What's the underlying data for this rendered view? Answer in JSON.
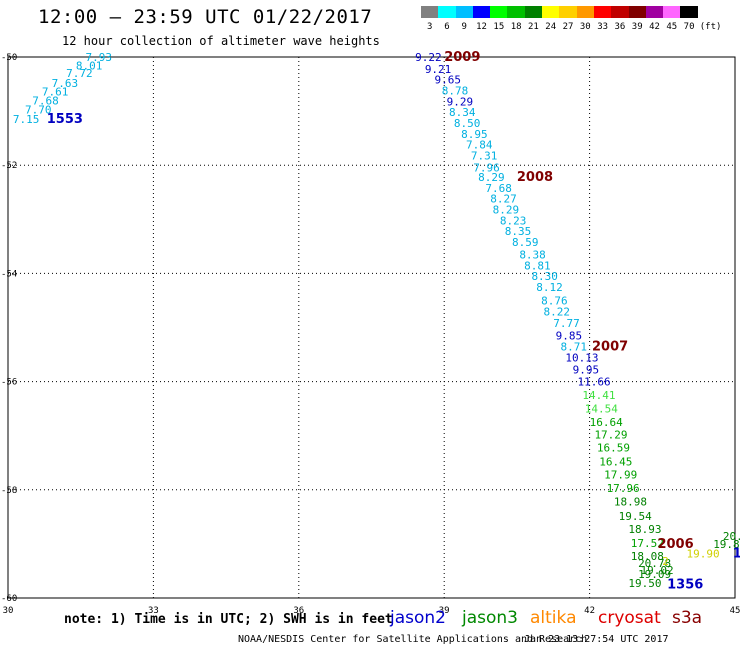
{
  "header": {
    "title": "12:00 – 23:59 UTC 01/22/2017",
    "subtitle": "12 hour collection of altimeter wave heights"
  },
  "colorbar": {
    "unit": "(ft)",
    "bins": [
      {
        "label": "3",
        "color": "#808080"
      },
      {
        "label": "6",
        "color": "#00ffff"
      },
      {
        "label": "9",
        "color": "#00bfff"
      },
      {
        "label": "12",
        "color": "#0000ff"
      },
      {
        "label": "15",
        "color": "#00ff00"
      },
      {
        "label": "18",
        "color": "#00c000"
      },
      {
        "label": "21",
        "color": "#008000"
      },
      {
        "label": "24",
        "color": "#ffff00"
      },
      {
        "label": "27",
        "color": "#ffd000"
      },
      {
        "label": "30",
        "color": "#ff9900"
      },
      {
        "label": "33",
        "color": "#ff0000"
      },
      {
        "label": "36",
        "color": "#c00000"
      },
      {
        "label": "39",
        "color": "#800000"
      },
      {
        "label": "42",
        "color": "#a000a0"
      },
      {
        "label": "45",
        "color": "#ff66ff"
      },
      {
        "label": "70",
        "color": "#000000"
      }
    ]
  },
  "footer": {
    "note": "note: 1) Time is in UTC; 2) SWH is in feet",
    "satellites": [
      {
        "name": "jason2",
        "color": "#0000cc"
      },
      {
        "name": "jason3",
        "color": "#008800"
      },
      {
        "name": "altika",
        "color": "#ff8800"
      },
      {
        "name": "cryosat",
        "color": "#dd0000"
      },
      {
        "name": "s3a",
        "color": "#880000"
      }
    ],
    "credit": "NOAA/NESDIS Center for Satellite Applications and Research",
    "timestamp": "Jan 23 13:27:54 UTC 2017"
  },
  "chart_data": {
    "type": "scatter",
    "xlim": [
      30,
      45
    ],
    "ylim": [
      -60,
      -50
    ],
    "x_ticks": [
      30,
      33,
      36,
      39,
      42,
      45
    ],
    "y_ticks": [
      -50,
      -52,
      -54,
      -56,
      -58,
      -60
    ],
    "grid": true,
    "points": [
      {
        "x": 31.6,
        "y": -50.0,
        "value": "7.93",
        "color": "#00b0e0"
      },
      {
        "x": 31.4,
        "y": -50.16,
        "value": "8.01",
        "color": "#00b0e0"
      },
      {
        "x": 31.2,
        "y": -50.3,
        "value": "7.72",
        "color": "#00b0e0"
      },
      {
        "x": 30.9,
        "y": -50.48,
        "value": "7.63",
        "color": "#00b0e0"
      },
      {
        "x": 30.7,
        "y": -50.64,
        "value": "7.61",
        "color": "#00b0e0"
      },
      {
        "x": 30.5,
        "y": -50.8,
        "value": "7.68",
        "color": "#00b0e0"
      },
      {
        "x": 30.35,
        "y": -50.97,
        "value": "7.70",
        "color": "#00b0e0"
      },
      {
        "x": 30.1,
        "y": -51.15,
        "value": "7.15",
        "color": "#00b0e0"
      },
      {
        "x": 38.4,
        "y": -50.0,
        "value": "9.22",
        "color": "#0000c0"
      },
      {
        "x": 38.6,
        "y": -50.22,
        "value": "9.21",
        "color": "#0000c0"
      },
      {
        "x": 38.8,
        "y": -50.42,
        "value": "9.65",
        "color": "#0000c0"
      },
      {
        "x": 38.95,
        "y": -50.62,
        "value": "8.78",
        "color": "#00b0e0"
      },
      {
        "x": 39.05,
        "y": -50.82,
        "value": "9.29",
        "color": "#0000c0"
      },
      {
        "x": 39.1,
        "y": -51.02,
        "value": "8.34",
        "color": "#00b0e0"
      },
      {
        "x": 39.2,
        "y": -51.22,
        "value": "8.50",
        "color": "#00b0e0"
      },
      {
        "x": 39.35,
        "y": -51.42,
        "value": "8.95",
        "color": "#00b0e0"
      },
      {
        "x": 39.45,
        "y": -51.62,
        "value": "7.84",
        "color": "#00b0e0"
      },
      {
        "x": 39.55,
        "y": -51.82,
        "value": "7.31",
        "color": "#00b0e0"
      },
      {
        "x": 39.6,
        "y": -52.04,
        "value": "7.96",
        "color": "#00b0e0"
      },
      {
        "x": 39.7,
        "y": -52.22,
        "value": "8.29",
        "color": "#00b0e0"
      },
      {
        "x": 39.85,
        "y": -52.42,
        "value": "7.68",
        "color": "#00b0e0"
      },
      {
        "x": 39.95,
        "y": -52.62,
        "value": "8.27",
        "color": "#00b0e0"
      },
      {
        "x": 40.0,
        "y": -52.82,
        "value": "8.29",
        "color": "#00b0e0"
      },
      {
        "x": 40.15,
        "y": -53.02,
        "value": "8.23",
        "color": "#00b0e0"
      },
      {
        "x": 40.25,
        "y": -53.22,
        "value": "8.35",
        "color": "#00b0e0"
      },
      {
        "x": 40.4,
        "y": -53.42,
        "value": "8.59",
        "color": "#00b0e0"
      },
      {
        "x": 40.55,
        "y": -53.65,
        "value": "8.38",
        "color": "#00b0e0"
      },
      {
        "x": 40.65,
        "y": -53.85,
        "value": "8.81",
        "color": "#00b0e0"
      },
      {
        "x": 40.8,
        "y": -54.05,
        "value": "8.30",
        "color": "#00b0e0"
      },
      {
        "x": 40.9,
        "y": -54.25,
        "value": "8.12",
        "color": "#00b0e0"
      },
      {
        "x": 41.0,
        "y": -54.5,
        "value": "8.76",
        "color": "#00b0e0"
      },
      {
        "x": 41.05,
        "y": -54.7,
        "value": "8.22",
        "color": "#00b0e0"
      },
      {
        "x": 41.25,
        "y": -54.92,
        "value": "7.77",
        "color": "#00b0e0"
      },
      {
        "x": 41.3,
        "y": -55.15,
        "value": "9.85",
        "color": "#0000c0"
      },
      {
        "x": 41.4,
        "y": -55.35,
        "value": "8.71",
        "color": "#00b0e0"
      },
      {
        "x": 41.5,
        "y": -55.55,
        "value": "10.13",
        "color": "#0000c0"
      },
      {
        "x": 41.65,
        "y": -55.78,
        "value": "9.95",
        "color": "#0000c0"
      },
      {
        "x": 41.75,
        "y": -56.0,
        "value": "11.66",
        "color": "#0000c0"
      },
      {
        "x": 41.85,
        "y": -56.25,
        "value": "14.41",
        "color": "#40e040"
      },
      {
        "x": 41.9,
        "y": -56.5,
        "value": "14.54",
        "color": "#40e040"
      },
      {
        "x": 42.0,
        "y": -56.75,
        "value": "16.64",
        "color": "#00a000"
      },
      {
        "x": 42.1,
        "y": -56.98,
        "value": "17.29",
        "color": "#00a000"
      },
      {
        "x": 42.15,
        "y": -57.22,
        "value": "16.59",
        "color": "#00a000"
      },
      {
        "x": 42.2,
        "y": -57.48,
        "value": "16.45",
        "color": "#00a000"
      },
      {
        "x": 42.3,
        "y": -57.72,
        "value": "17.99",
        "color": "#00a000"
      },
      {
        "x": 42.35,
        "y": -57.97,
        "value": "17.96",
        "color": "#00a000"
      },
      {
        "x": 42.5,
        "y": -58.22,
        "value": "18.98",
        "color": "#008000"
      },
      {
        "x": 42.6,
        "y": -58.48,
        "value": "19.54",
        "color": "#008000"
      },
      {
        "x": 42.8,
        "y": -58.72,
        "value": "18.93",
        "color": "#008000"
      },
      {
        "x": 42.85,
        "y": -58.98,
        "value": "17.52",
        "color": "#00a000"
      },
      {
        "x": 42.85,
        "y": -59.22,
        "value": "18.08",
        "color": "#008000"
      },
      {
        "x": 43.0,
        "y": -59.35,
        "value": "20.78",
        "color": "#008000"
      },
      {
        "x": 43.05,
        "y": -59.48,
        "value": "19.02",
        "color": "#008000"
      },
      {
        "x": 43.0,
        "y": -59.56,
        "value": "19.09",
        "color": "#008000"
      },
      {
        "x": 42.8,
        "y": -59.72,
        "value": "19.50",
        "color": "#008000"
      },
      {
        "x": 44.0,
        "y": -59.18,
        "value": "19.90",
        "color": "#d0d000"
      },
      {
        "x": 44.55,
        "y": -59.0,
        "value": "19.86",
        "color": "#008000"
      },
      {
        "x": 44.75,
        "y": -58.85,
        "value": "20.",
        "color": "#008000"
      },
      {
        "x": 43.5,
        "y": -59.32,
        "value": "2",
        "color": "#d0d000"
      }
    ],
    "annotations": [
      {
        "x": 30.8,
        "y": -51.15,
        "text": "1553",
        "color": "#0000c0",
        "bold": true
      },
      {
        "x": 39.0,
        "y": -50.0,
        "text": "2009",
        "color": "#800000",
        "bold": true
      },
      {
        "x": 40.5,
        "y": -52.22,
        "text": "2008",
        "color": "#800000",
        "bold": true
      },
      {
        "x": 42.05,
        "y": -55.35,
        "text": "2007",
        "color": "#800000",
        "bold": true
      },
      {
        "x": 43.4,
        "y": -59.0,
        "text": "2006",
        "color": "#800000",
        "bold": true
      },
      {
        "x": 43.6,
        "y": -59.75,
        "text": "1356",
        "color": "#0000c0",
        "bold": true
      },
      {
        "x": 44.95,
        "y": -59.18,
        "text": "1",
        "color": "#0000c0",
        "bold": true
      }
    ]
  }
}
